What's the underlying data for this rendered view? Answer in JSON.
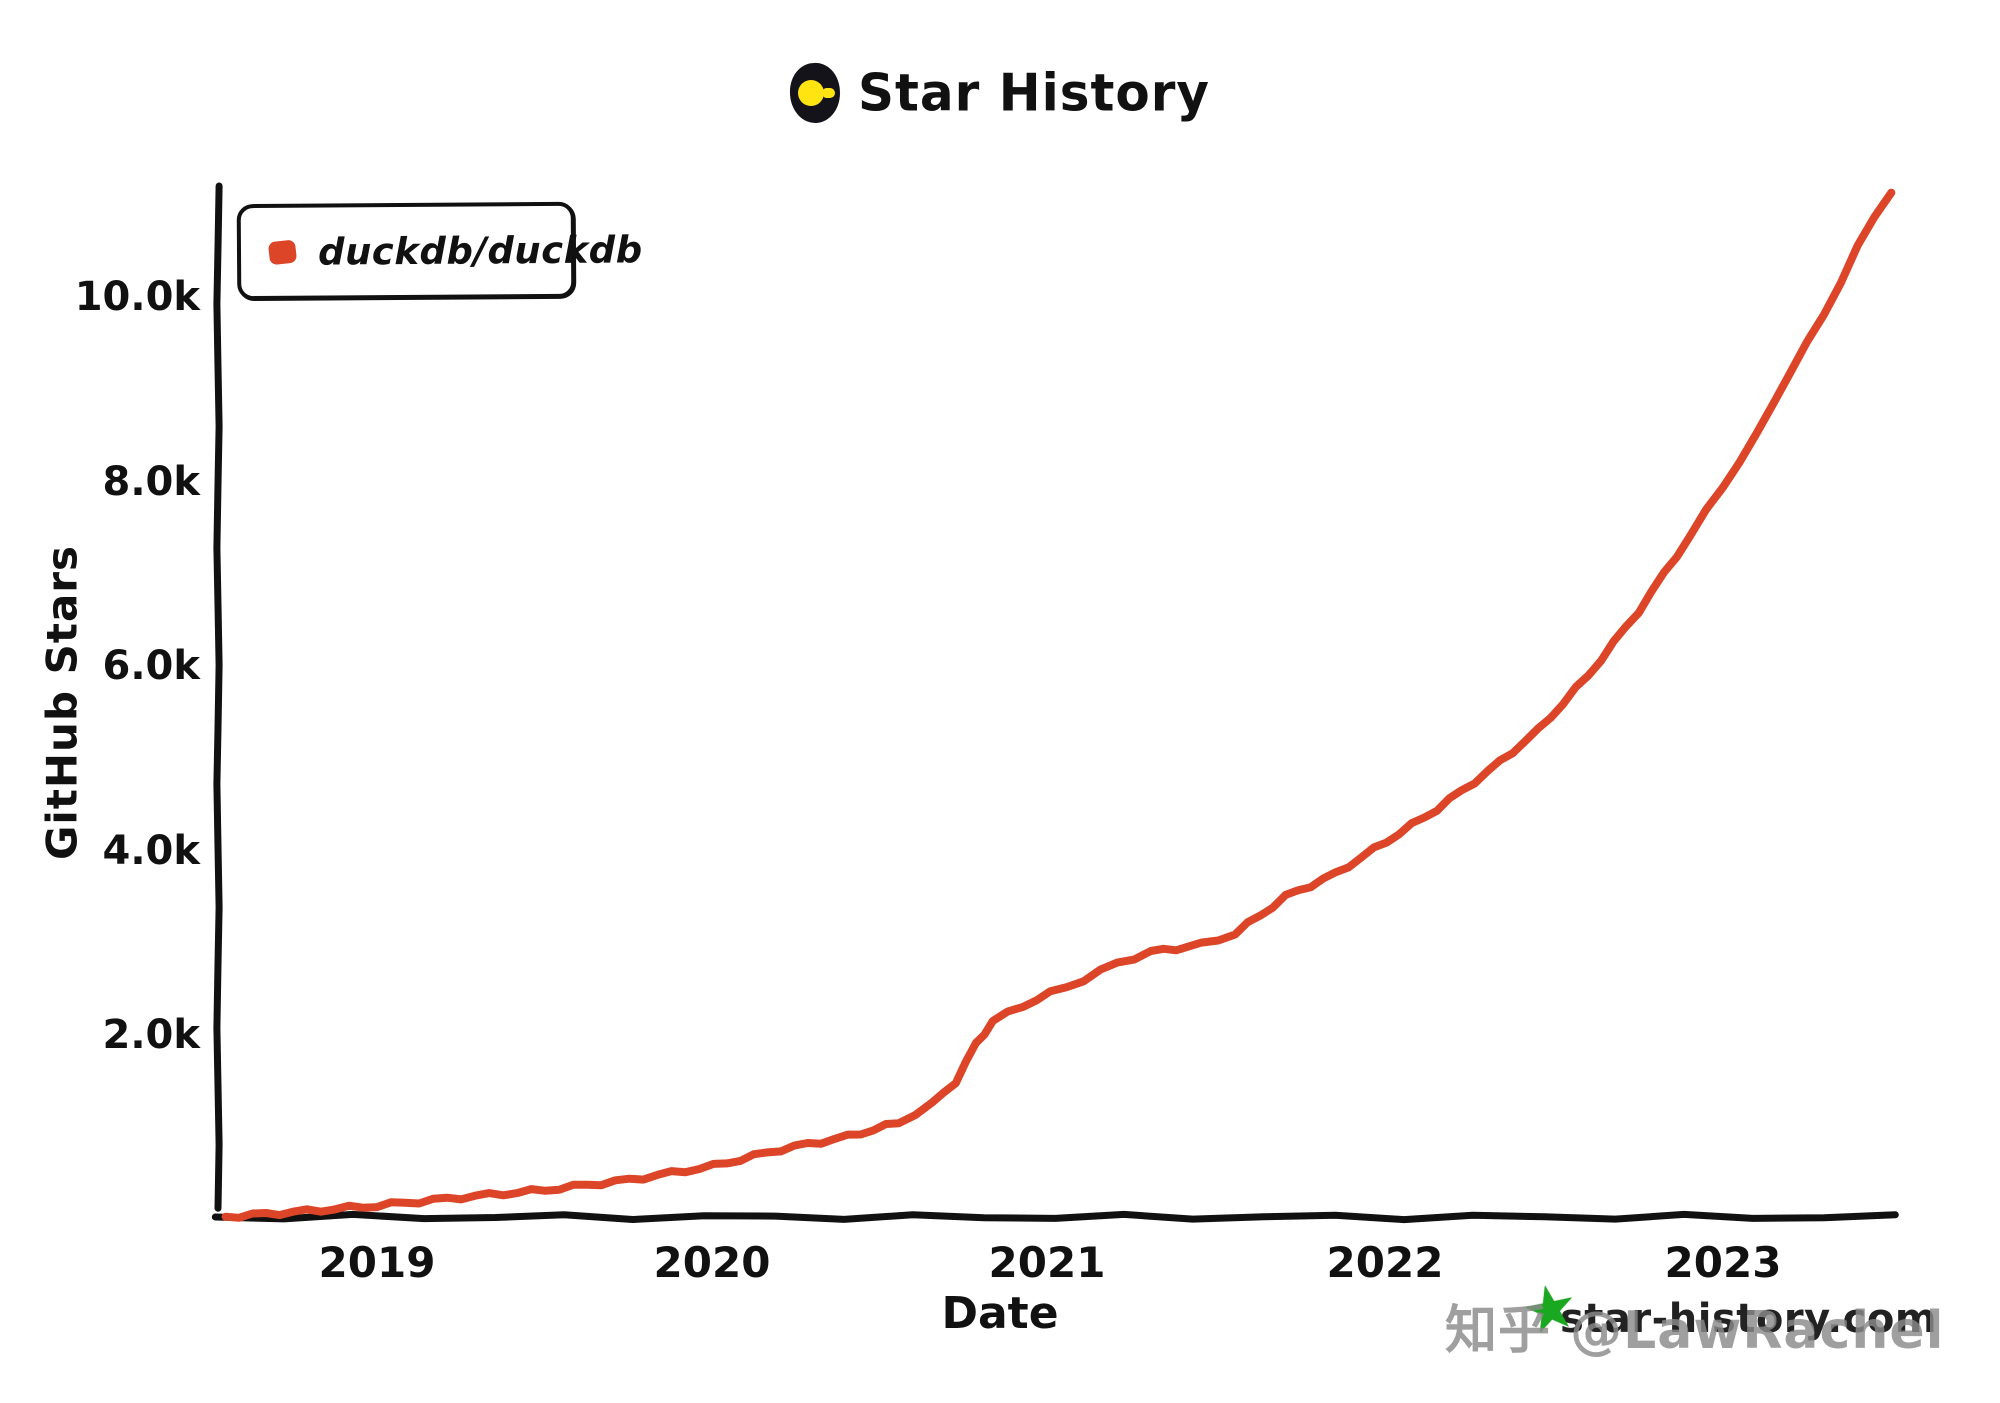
{
  "title": {
    "text": "Star History"
  },
  "legend": {
    "series_label": "duckdb/duckdb",
    "marker_color": "#dd4528"
  },
  "axes": {
    "y_label": "GitHub Stars",
    "x_label": "Date",
    "y_ticks": [
      "10.0k",
      "8.0k",
      "6.0k",
      "4.0k",
      "2.0k"
    ],
    "x_ticks": [
      "2019",
      "2020",
      "2021",
      "2022",
      "2023"
    ]
  },
  "watermarks": {
    "site": "star-history.com",
    "green_star_icon": "star",
    "zhihu": "知乎 @LawRachel"
  },
  "colors": {
    "line": "#dd4528",
    "axis": "#111111",
    "logo_bg": "#15131a",
    "logo_accent": "#ffe411",
    "watermark_gray": "#8a8a8a",
    "watermark_green": "#19a81f"
  },
  "chart_data": {
    "type": "line",
    "title": "Star History",
    "xlabel": "Date",
    "ylabel": "GitHub Stars",
    "xlim": [
      2018.5,
      2023.62
    ],
    "ylim": [
      0,
      11600
    ],
    "x_tick_values": [
      2019,
      2020,
      2021,
      2022,
      2023
    ],
    "y_tick_values": [
      2000,
      4000,
      6000,
      8000,
      10000
    ],
    "grid": false,
    "legend_position": "top-left",
    "style": "xkcd-hand-drawn",
    "series": [
      {
        "name": "duckdb/duckdb",
        "color": "#dd4528",
        "x_unit": "decimal_year",
        "y_unit": "github_stars",
        "points": [
          [
            2018.55,
            30
          ],
          [
            2018.75,
            80
          ],
          [
            2019.0,
            150
          ],
          [
            2019.25,
            240
          ],
          [
            2019.5,
            320
          ],
          [
            2019.75,
            430
          ],
          [
            2020.0,
            580
          ],
          [
            2020.2,
            760
          ],
          [
            2020.4,
            900
          ],
          [
            2020.55,
            1050
          ],
          [
            2020.65,
            1250
          ],
          [
            2020.72,
            1500
          ],
          [
            2020.78,
            1900
          ],
          [
            2020.83,
            2150
          ],
          [
            2020.92,
            2320
          ],
          [
            2021.0,
            2450
          ],
          [
            2021.1,
            2600
          ],
          [
            2021.2,
            2780
          ],
          [
            2021.3,
            2900
          ],
          [
            2021.45,
            2980
          ],
          [
            2021.55,
            3100
          ],
          [
            2021.7,
            3500
          ],
          [
            2021.85,
            3750
          ],
          [
            2022.0,
            4100
          ],
          [
            2022.15,
            4450
          ],
          [
            2022.3,
            4850
          ],
          [
            2022.45,
            5300
          ],
          [
            2022.6,
            5900
          ],
          [
            2022.75,
            6600
          ],
          [
            2022.9,
            7400
          ],
          [
            2023.0,
            7950
          ],
          [
            2023.1,
            8500
          ],
          [
            2023.2,
            9200
          ],
          [
            2023.3,
            9800
          ],
          [
            2023.4,
            10550
          ],
          [
            2023.5,
            11150
          ]
        ]
      }
    ]
  }
}
